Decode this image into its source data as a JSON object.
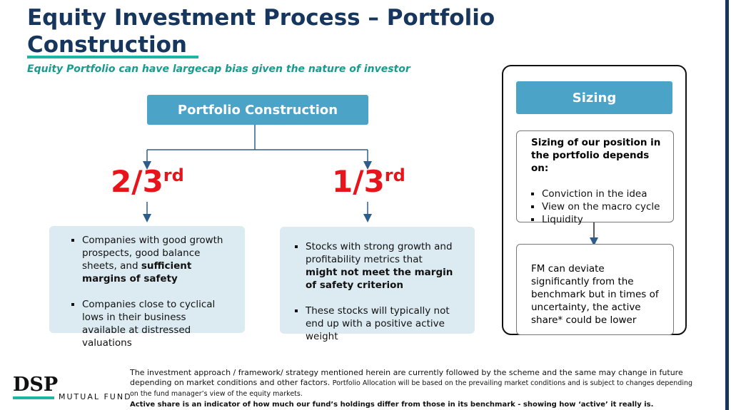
{
  "title": "Equity Investment Process – Portfolio Construction",
  "subtitle": "Equity Portfolio can have largecap bias given the nature of investor",
  "root": "Portfolio Construction",
  "branches": [
    {
      "fraction": "2/3",
      "suffix": "rd",
      "bullets": [
        {
          "text": "Companies with good growth prospects, good balance sheets, and ",
          "bold": "sufficient margins of safety"
        },
        {
          "text": "Companies close to cyclical lows in their business available at distressed valuations"
        }
      ]
    },
    {
      "fraction": "1/3",
      "suffix": "rd",
      "bullets": [
        {
          "text": "Stocks with strong growth and profitability metrics that ",
          "bold": "might not meet the margin of safety criterion"
        },
        {
          "text": "These stocks will typically not end up with a positive active weight"
        }
      ]
    }
  ],
  "sizing": {
    "header": "Sizing",
    "intro": "Sizing of our position in the portfolio depends on:",
    "bullets": [
      "Conviction in the idea",
      "View on the macro cycle",
      "Liquidity"
    ],
    "note": "FM can deviate significantly from the benchmark but in times of uncertainty, the active share* could be lower"
  },
  "logo": {
    "brand": "DSP",
    "tagline": "MUTUAL FUND"
  },
  "footer": {
    "disclaimer": "The investment approach / framework/ strategy mentioned herein are currently followed by the scheme and the same may change in future depending on market conditions and other factors.",
    "allocation": "Portfolio Allocation will be based on the prevailing market conditions and is subject to changes depending on the fund manager’s view of the equity markets.",
    "active_share": "Active share is an indicator of how much our fund’s holdings differ from those in its benchmark - showing how ‘active’ it really is."
  }
}
